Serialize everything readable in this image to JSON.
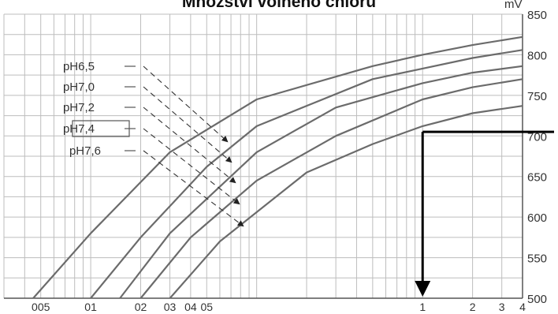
{
  "chart_data": {
    "type": "line",
    "title": "Množství volného chloru",
    "ylabel": "mV",
    "x_scale": "log",
    "xlim": [
      0.003,
      4
    ],
    "ylim": [
      500,
      850
    ],
    "x_ticks": [
      {
        "value": 0.005,
        "label": "005"
      },
      {
        "value": 0.01,
        "label": "01"
      },
      {
        "value": 0.02,
        "label": "02"
      },
      {
        "value": 0.03,
        "label": "03"
      },
      {
        "value": 0.04,
        "label": "04"
      },
      {
        "value": 0.05,
        "label": "05"
      },
      {
        "value": 1,
        "label": "1"
      },
      {
        "value": 2,
        "label": "2"
      },
      {
        "value": 3,
        "label": "3"
      },
      {
        "value": 4,
        "label": "4"
      }
    ],
    "y_ticks": [
      {
        "value": 500,
        "label": "500"
      },
      {
        "value": 550,
        "label": "550"
      },
      {
        "value": 600,
        "label": "600"
      },
      {
        "value": 650,
        "label": "650"
      },
      {
        "value": 700,
        "label": "700"
      },
      {
        "value": 750,
        "label": "750"
      },
      {
        "value": 800,
        "label": "800"
      },
      {
        "value": 850,
        "label": "850"
      }
    ],
    "grid": true,
    "highlighted_series": "pH7,4",
    "series": [
      {
        "name": "pH6,5",
        "x": [
          0.0045,
          0.01,
          0.03,
          0.1,
          0.5,
          1,
          2,
          4
        ],
        "y": [
          500,
          580,
          680,
          745,
          786,
          800,
          812,
          822
        ]
      },
      {
        "name": "pH7,0",
        "x": [
          0.01,
          0.02,
          0.05,
          0.1,
          0.5,
          1,
          2,
          4
        ],
        "y": [
          500,
          575,
          662,
          712,
          770,
          783,
          796,
          806
        ]
      },
      {
        "name": "pH7,2",
        "x": [
          0.015,
          0.03,
          0.1,
          0.3,
          1,
          2,
          4
        ],
        "y": [
          500,
          580,
          680,
          735,
          765,
          778,
          786
        ]
      },
      {
        "name": "pH7,4",
        "x": [
          0.02,
          0.04,
          0.1,
          0.3,
          1,
          2,
          4
        ],
        "y": [
          500,
          575,
          645,
          700,
          745,
          760,
          770
        ]
      },
      {
        "name": "pH7,6",
        "x": [
          0.03,
          0.06,
          0.2,
          0.5,
          1,
          2,
          4
        ],
        "y": [
          500,
          570,
          655,
          690,
          712,
          728,
          737
        ]
      }
    ],
    "annotation": {
      "x": 1,
      "y": 705,
      "description": "reading guide"
    }
  }
}
